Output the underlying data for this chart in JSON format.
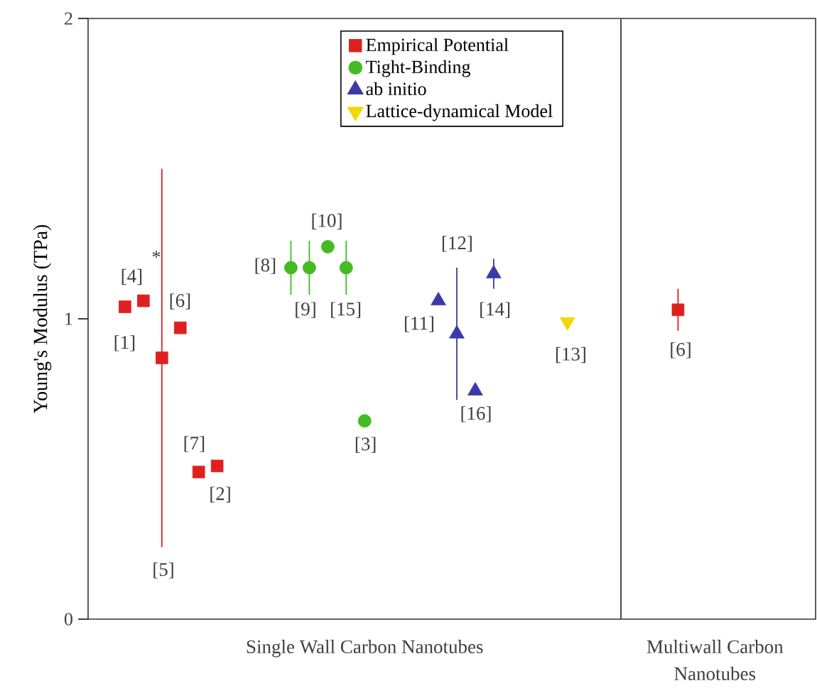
{
  "chart_data": {
    "type": "scatter",
    "ylabel": "Young's Modulus (TPa)",
    "categories": [
      null,
      null,
      null,
      null,
      null,
      null,
      null,
      null,
      null,
      null,
      null,
      null,
      null,
      "Single Wall Carbon Nanotubes",
      null,
      null,
      null,
      null,
      null,
      null,
      null,
      null,
      null,
      null,
      null,
      null,
      null,
      null,
      null,
      null,
      null,
      null,
      "Multiwall Carbon Nanotubes"
    ],
    "ylim": [
      0,
      2
    ],
    "yticks": [
      0,
      1,
      2
    ],
    "legend": "top",
    "series": [
      {
        "name": "Empirical Potential",
        "color": "#e02020",
        "marker": "square",
        "values": [
          1.04,
          1.06,
          0.87,
          0.97,
          0.49,
          0.51,
          null,
          null,
          null,
          null,
          null,
          null,
          null,
          null,
          null,
          null,
          null,
          null,
          null,
          null,
          null,
          null,
          null,
          null,
          null,
          null,
          null,
          null,
          null,
          null,
          1.03,
          null,
          null
        ],
        "errors": [
          null,
          null,
          0.63,
          null,
          null,
          null,
          null,
          null,
          null,
          null,
          null,
          null,
          null,
          null,
          null,
          null,
          null,
          null,
          null,
          null,
          null,
          null,
          null,
          null,
          null,
          null,
          null,
          null,
          null,
          null,
          0.07,
          null,
          null
        ]
      },
      {
        "name": "Tight-Binding",
        "color": "#44bb22",
        "marker": "circle",
        "values": [
          null,
          null,
          null,
          null,
          null,
          null,
          null,
          null,
          null,
          1.17,
          1.17,
          1.24,
          1.17,
          0.66,
          null,
          null,
          null,
          null,
          null,
          null,
          null,
          null,
          null,
          null,
          null,
          null,
          null,
          null,
          null,
          null,
          null,
          null,
          null
        ],
        "errors": [
          null,
          null,
          null,
          null,
          null,
          null,
          null,
          null,
          null,
          0.09,
          0.09,
          null,
          0.09,
          null,
          null,
          null,
          null,
          null,
          null,
          null,
          null,
          null,
          null,
          null,
          null,
          null,
          null,
          null,
          null,
          null,
          null,
          null,
          null
        ]
      },
      {
        "name": "ab initio",
        "color": "#3a3aa8",
        "marker": "triangle",
        "values": [
          null,
          null,
          null,
          null,
          null,
          null,
          null,
          null,
          null,
          null,
          null,
          null,
          null,
          null,
          null,
          null,
          null,
          1.06,
          0.95,
          0.76,
          1.15,
          null,
          null,
          null,
          null,
          null,
          null,
          null,
          null,
          null,
          null,
          null,
          null
        ],
        "errors": [
          null,
          null,
          null,
          null,
          null,
          null,
          null,
          null,
          null,
          null,
          null,
          null,
          null,
          null,
          null,
          null,
          null,
          null,
          0.22,
          null,
          0.05,
          null,
          null,
          null,
          null,
          null,
          null,
          null,
          null,
          null,
          null,
          null,
          null
        ]
      },
      {
        "name": "Lattice-dynamical Model",
        "color": "#f0d800",
        "marker": "triangle-down",
        "values": [
          null,
          null,
          null,
          null,
          null,
          null,
          null,
          null,
          null,
          null,
          null,
          null,
          null,
          null,
          null,
          null,
          null,
          null,
          null,
          null,
          null,
          null,
          null,
          null,
          0.99,
          null,
          null,
          null,
          null,
          null,
          null,
          null,
          null
        ]
      }
    ],
    "annotations": [
      "[1]",
      "[4]",
      "*",
      "[5]",
      "[6]",
      "[7]",
      "[2]",
      "[8]",
      "[9]",
      "[10]",
      "[15]",
      "[3]",
      "[11]",
      "[12]",
      "[16]",
      "[14]",
      "[13]",
      "[6]"
    ]
  }
}
